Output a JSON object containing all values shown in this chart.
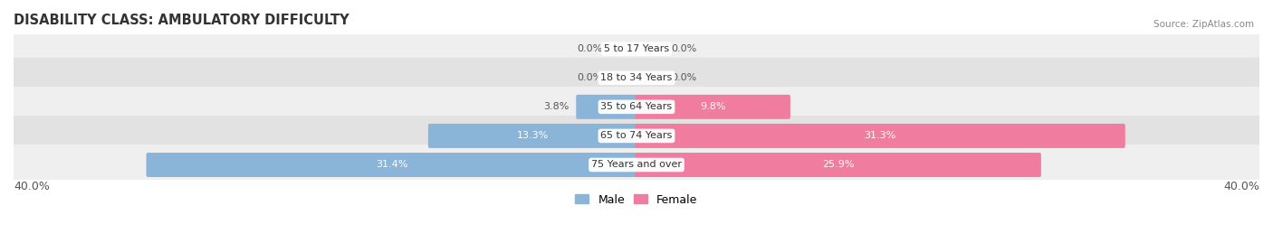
{
  "title": "DISABILITY CLASS: AMBULATORY DIFFICULTY",
  "source": "Source: ZipAtlas.com",
  "categories": [
    "5 to 17 Years",
    "18 to 34 Years",
    "35 to 64 Years",
    "65 to 74 Years",
    "75 Years and over"
  ],
  "male_values": [
    0.0,
    0.0,
    3.8,
    13.3,
    31.4
  ],
  "female_values": [
    0.0,
    0.0,
    9.8,
    31.3,
    25.9
  ],
  "max_val": 40.0,
  "male_color": "#8ab4d8",
  "female_color": "#f07ca0",
  "row_bg_colors": [
    "#efefef",
    "#e2e2e2"
  ],
  "title_fontsize": 10.5,
  "label_fontsize": 8.0,
  "value_fontsize": 8.0,
  "axis_fontsize": 9,
  "legend_fontsize": 9,
  "bar_height": 0.68
}
